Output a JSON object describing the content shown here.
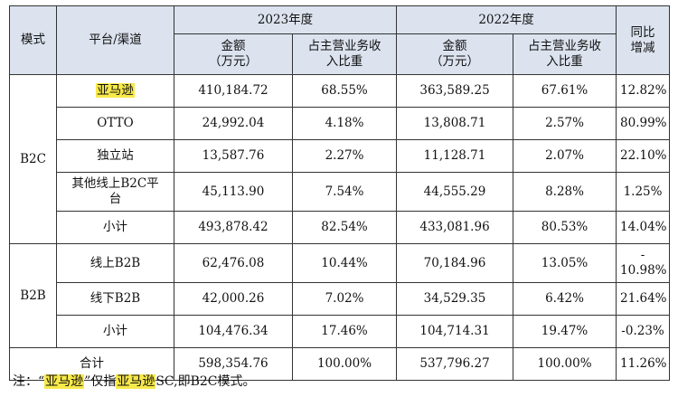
{
  "header": {
    "mode": "模式",
    "platform": "平台/渠道",
    "year_2023": "2023年度",
    "year_2022": "2022年度",
    "yoy": "同比\n增减",
    "amount": "金额\n（万元）",
    "ratio": "占主营业务收\n入比重"
  },
  "groups": [
    {
      "mode": "B2C",
      "rows": [
        {
          "platform": "亚马逊",
          "highlight": true,
          "amount_2023": "410,184.72",
          "ratio_2023": "68.55%",
          "amount_2022": "363,589.25",
          "ratio_2022": "67.61%",
          "yoy": "12.82%"
        },
        {
          "platform": "OTTO",
          "amount_2023": "24,992.04",
          "ratio_2023": "4.18%",
          "amount_2022": "13,808.71",
          "ratio_2022": "2.57%",
          "yoy": "80.99%"
        },
        {
          "platform": "独立站",
          "amount_2023": "13,587.76",
          "ratio_2023": "2.27%",
          "amount_2022": "11,128.71",
          "ratio_2022": "2.07%",
          "yoy": "22.10%"
        },
        {
          "platform": "其他线上B2C平\n台",
          "amount_2023": "45,113.90",
          "ratio_2023": "7.54%",
          "amount_2022": "44,555.29",
          "ratio_2022": "8.28%",
          "yoy": "1.25%"
        },
        {
          "platform": "小计",
          "amount_2023": "493,878.42",
          "ratio_2023": "82.54%",
          "amount_2022": "433,081.96",
          "ratio_2022": "80.53%",
          "yoy": "14.04%"
        }
      ]
    },
    {
      "mode": "B2B",
      "rows": [
        {
          "platform": "线上B2B",
          "amount_2023": "62,476.08",
          "ratio_2023": "10.44%",
          "amount_2022": "70,184.96",
          "ratio_2022": "13.05%",
          "yoy": "-\n10.98%"
        },
        {
          "platform": "线下B2B",
          "amount_2023": "42,000.26",
          "ratio_2023": "7.02%",
          "amount_2022": "34,529.35",
          "ratio_2022": "6.42%",
          "yoy": "21.64%"
        },
        {
          "platform": "小计",
          "amount_2023": "104,476.34",
          "ratio_2023": "17.46%",
          "amount_2022": "104,714.31",
          "ratio_2022": "19.47%",
          "yoy": "-0.23%"
        }
      ]
    }
  ],
  "total": {
    "label": "合计",
    "amount_2023": "598,354.76",
    "ratio_2023": "100.00%",
    "amount_2022": "537,796.27",
    "ratio_2022": "100.00%",
    "yoy": "11.26%"
  },
  "note": {
    "prefix": "注：“",
    "term1": "亚马逊",
    "middle": "”仅指",
    "term2": "亚马逊",
    "suffix": "SC,即B2C模式。"
  },
  "highlight_color": "#f7e94a",
  "header_bg": "#dce3ef"
}
